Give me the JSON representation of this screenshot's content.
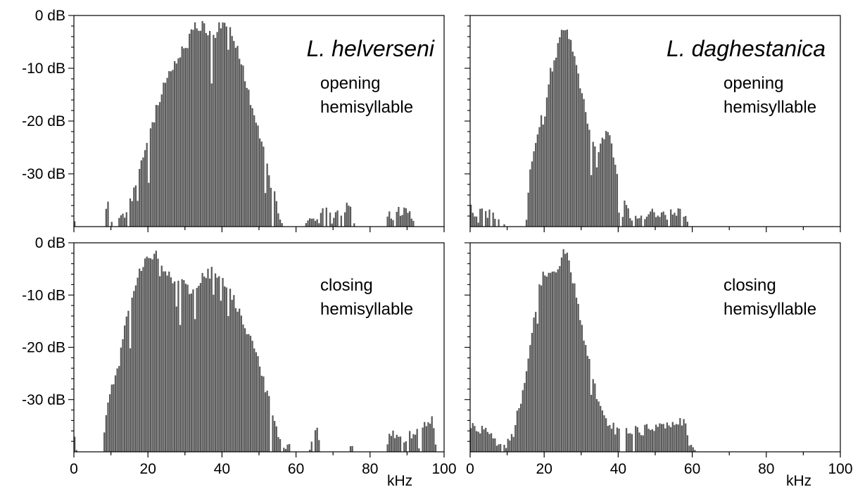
{
  "figure": {
    "colors": {
      "bars": "#5a5a5a",
      "frame": "#000000",
      "background": "#ffffff"
    },
    "x_unit": "kHz",
    "y_tick_labels": [
      "0 dB",
      "-10 dB",
      "-20 dB",
      "-30 dB"
    ],
    "x_tick_labels": [
      "0",
      "20",
      "40",
      "60",
      "80",
      "100"
    ]
  },
  "chart_data": [
    {
      "type": "bar",
      "id": "helverseni-opening",
      "species": "L. helverseni",
      "label_line1": "opening",
      "label_line2": "hemisyllable",
      "xlim": [
        0,
        100
      ],
      "ylim": [
        -40,
        0
      ],
      "x_ticks": [
        0,
        20,
        40,
        60,
        80,
        100
      ],
      "y_ticks": [
        0,
        -10,
        -20,
        -30
      ],
      "x_tick_labels": [],
      "y_tick_labels": [
        "0 dB",
        "-10 dB",
        "-20 dB",
        "-30 dB"
      ],
      "bin_width_khz": 0.5,
      "envelope": [
        [
          0,
          -36
        ],
        [
          0.5,
          -40
        ],
        [
          8,
          -40
        ],
        [
          9,
          -34
        ],
        [
          10,
          -37
        ],
        [
          11,
          -40
        ],
        [
          13,
          -37
        ],
        [
          15,
          -35
        ],
        [
          17,
          -30
        ],
        [
          19,
          -25
        ],
        [
          21,
          -20
        ],
        [
          23,
          -15
        ],
        [
          25,
          -11
        ],
        [
          27,
          -9
        ],
        [
          29,
          -6
        ],
        [
          31,
          -3
        ],
        [
          33,
          -1
        ],
        [
          35,
          -1
        ],
        [
          37,
          -3
        ],
        [
          39,
          -1
        ],
        [
          41,
          -0.5
        ],
        [
          43,
          -3
        ],
        [
          45,
          -7
        ],
        [
          47,
          -13
        ],
        [
          49,
          -18
        ],
        [
          51,
          -24
        ],
        [
          53,
          -30
        ],
        [
          55,
          -35
        ],
        [
          56,
          -39
        ],
        [
          57,
          -40
        ],
        [
          62,
          -40
        ],
        [
          63,
          -37
        ],
        [
          65,
          -38
        ],
        [
          68,
          -36
        ],
        [
          70,
          -38
        ],
        [
          72,
          -36
        ],
        [
          75,
          -35
        ],
        [
          76,
          -40
        ],
        [
          84,
          -40
        ],
        [
          85,
          -37
        ],
        [
          88,
          -36
        ],
        [
          90,
          -35
        ],
        [
          92,
          -37
        ],
        [
          93,
          -40
        ],
        [
          100,
          -40
        ]
      ],
      "gaps": [
        [
          1,
          8
        ],
        [
          57,
          62
        ],
        [
          76,
          84
        ],
        [
          93,
          100
        ]
      ]
    },
    {
      "type": "bar",
      "id": "daghestanica-opening",
      "species": "L. daghestanica",
      "label_line1": "opening",
      "label_line2": "hemisyllable",
      "xlim": [
        0,
        100
      ],
      "ylim": [
        -40,
        0
      ],
      "x_ticks": [
        0,
        20,
        40,
        60,
        80,
        100
      ],
      "y_ticks": [
        0,
        -10,
        -20,
        -30
      ],
      "x_tick_labels": [],
      "y_tick_labels": [],
      "bin_width_khz": 0.5,
      "envelope": [
        [
          0,
          -31
        ],
        [
          1,
          -37
        ],
        [
          3,
          -36
        ],
        [
          6,
          -37
        ],
        [
          9,
          -39
        ],
        [
          11,
          -40
        ],
        [
          15,
          -40
        ],
        [
          16,
          -30
        ],
        [
          18,
          -22
        ],
        [
          20,
          -16
        ],
        [
          22,
          -9
        ],
        [
          24,
          -4
        ],
        [
          25,
          -0.5
        ],
        [
          26,
          -2
        ],
        [
          28,
          -6
        ],
        [
          30,
          -13
        ],
        [
          32,
          -20
        ],
        [
          34,
          -25
        ],
        [
          36,
          -22
        ],
        [
          37,
          -19
        ],
        [
          39,
          -27
        ],
        [
          41,
          -33
        ],
        [
          43,
          -36
        ],
        [
          45,
          -38
        ],
        [
          48,
          -36
        ],
        [
          52,
          -37
        ],
        [
          55,
          -36
        ],
        [
          58,
          -36
        ],
        [
          59,
          -40
        ],
        [
          100,
          -40
        ]
      ],
      "gaps": [
        [
          11,
          15
        ],
        [
          59,
          100
        ]
      ]
    },
    {
      "type": "bar",
      "id": "helverseni-closing",
      "species": "",
      "label_line1": "closing",
      "label_line2": "hemisyllable",
      "xlim": [
        0,
        100
      ],
      "ylim": [
        -40,
        0
      ],
      "x_ticks": [
        0,
        20,
        40,
        60,
        80,
        100
      ],
      "y_ticks": [
        0,
        -10,
        -20,
        -30
      ],
      "x_tick_labels": [
        "0",
        "20",
        "40",
        "60",
        "80",
        "100"
      ],
      "y_tick_labels": [
        "0 dB",
        "-10 dB",
        "-20 dB",
        "-30 dB"
      ],
      "bin_width_khz": 0.5,
      "envelope": [
        [
          0,
          -36
        ],
        [
          1,
          -40
        ],
        [
          7,
          -40
        ],
        [
          8,
          -37
        ],
        [
          9,
          -30
        ],
        [
          10,
          -26
        ],
        [
          12,
          -23
        ],
        [
          14,
          -14
        ],
        [
          16,
          -9
        ],
        [
          18,
          -4
        ],
        [
          20,
          -2
        ],
        [
          22,
          -1
        ],
        [
          24,
          -3
        ],
        [
          26,
          -5
        ],
        [
          28,
          -6
        ],
        [
          30,
          -7
        ],
        [
          32,
          -8
        ],
        [
          34,
          -6
        ],
        [
          36,
          -5
        ],
        [
          38,
          -4
        ],
        [
          40,
          -6
        ],
        [
          42,
          -8
        ],
        [
          44,
          -11
        ],
        [
          46,
          -14
        ],
        [
          48,
          -18
        ],
        [
          50,
          -22
        ],
        [
          52,
          -27
        ],
        [
          54,
          -33
        ],
        [
          56,
          -37
        ],
        [
          58,
          -38
        ],
        [
          60,
          -40
        ],
        [
          63,
          -40
        ],
        [
          64,
          -37
        ],
        [
          66,
          -35
        ],
        [
          67,
          -40
        ],
        [
          74,
          -40
        ],
        [
          75,
          -38
        ],
        [
          76,
          -40
        ],
        [
          84,
          -40
        ],
        [
          85,
          -35
        ],
        [
          88,
          -36
        ],
        [
          90,
          -36
        ],
        [
          92,
          -35
        ],
        [
          95,
          -34
        ],
        [
          97,
          -33
        ],
        [
          98,
          -38
        ],
        [
          100,
          -40
        ]
      ],
      "gaps": [
        [
          1,
          7
        ],
        [
          60,
          63
        ],
        [
          67,
          74
        ],
        [
          76,
          84
        ]
      ]
    },
    {
      "type": "bar",
      "id": "daghestanica-closing",
      "species": "",
      "label_line1": "closing",
      "label_line2": "hemisyllable",
      "xlim": [
        0,
        100
      ],
      "ylim": [
        -40,
        0
      ],
      "x_ticks": [
        0,
        20,
        40,
        60,
        80,
        100
      ],
      "y_ticks": [
        0,
        -10,
        -20,
        -30
      ],
      "x_tick_labels": [
        "0",
        "20",
        "40",
        "60",
        "80",
        "100"
      ],
      "y_tick_labels": [],
      "bin_width_khz": 0.5,
      "envelope": [
        [
          0,
          -33
        ],
        [
          2,
          -35
        ],
        [
          4,
          -34
        ],
        [
          6,
          -36
        ],
        [
          8,
          -37
        ],
        [
          10,
          -38
        ],
        [
          12,
          -34
        ],
        [
          14,
          -28
        ],
        [
          16,
          -20
        ],
        [
          18,
          -10
        ],
        [
          20,
          -4
        ],
        [
          22,
          -5
        ],
        [
          24,
          -4
        ],
        [
          25,
          -1
        ],
        [
          26,
          -0.5
        ],
        [
          27,
          -4
        ],
        [
          29,
          -10
        ],
        [
          31,
          -18
        ],
        [
          33,
          -24
        ],
        [
          35,
          -30
        ],
        [
          37,
          -33
        ],
        [
          40,
          -35
        ],
        [
          45,
          -35
        ],
        [
          50,
          -34
        ],
        [
          55,
          -34
        ],
        [
          58,
          -33
        ],
        [
          59,
          -38
        ],
        [
          62,
          -39
        ],
        [
          63,
          -40
        ],
        [
          65,
          -39.5
        ],
        [
          66,
          -40
        ],
        [
          100,
          -40
        ]
      ],
      "gaps": [
        [
          66,
          100
        ]
      ]
    }
  ]
}
